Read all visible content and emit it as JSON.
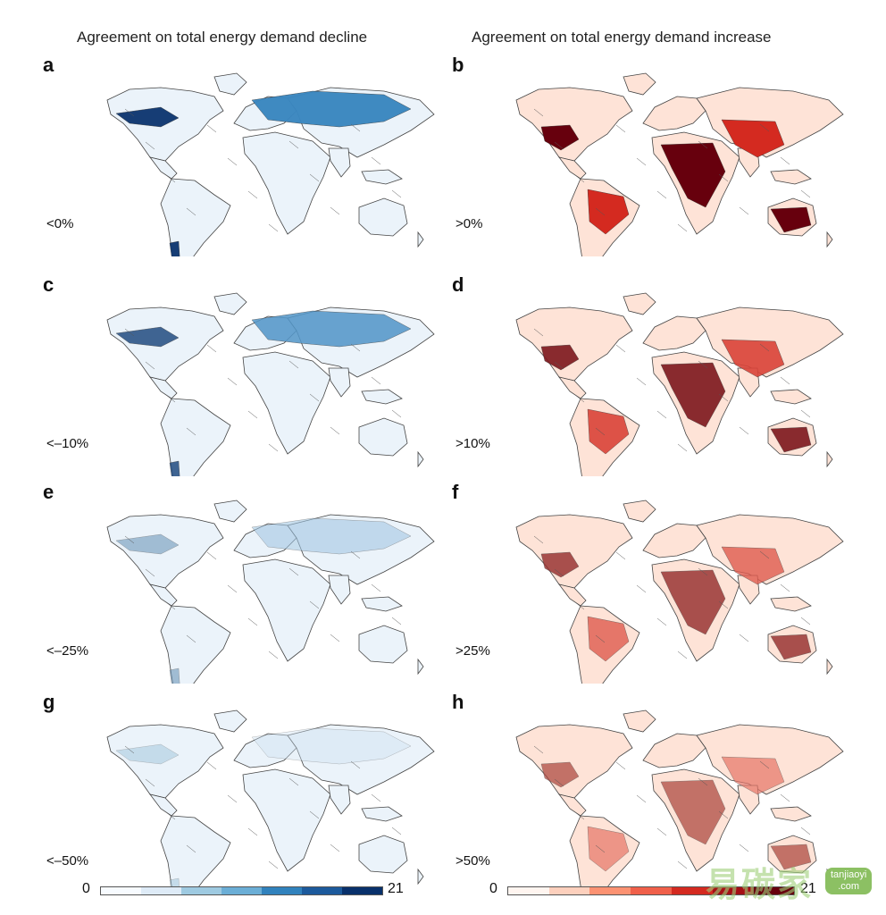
{
  "columns": {
    "left_title": "Agreement on total energy demand decline",
    "right_title": "Agreement on total energy demand increase"
  },
  "panels": [
    {
      "letter": "a",
      "threshold": "<0%",
      "scheme": "blue",
      "intensity": 0.95
    },
    {
      "letter": "b",
      "threshold": ">0%",
      "scheme": "red",
      "intensity": 1.0
    },
    {
      "letter": "c",
      "threshold": "<–10%",
      "scheme": "blue",
      "intensity": 0.8
    },
    {
      "letter": "d",
      "threshold": ">10%",
      "scheme": "red",
      "intensity": 0.85
    },
    {
      "letter": "e",
      "threshold": "<–25%",
      "scheme": "blue",
      "intensity": 0.35
    },
    {
      "letter": "f",
      "threshold": ">25%",
      "scheme": "red",
      "intensity": 0.7
    },
    {
      "letter": "g",
      "threshold": "<–50%",
      "scheme": "blue",
      "intensity": 0.1
    },
    {
      "letter": "h",
      "threshold": ">50%",
      "scheme": "red",
      "intensity": 0.55
    }
  ],
  "colorbars": {
    "blue": {
      "min_label": "0",
      "max_label": "21",
      "colors": [
        "#f7fbff",
        "#deebf7",
        "#9ecae1",
        "#6baed6",
        "#3182bd",
        "#1c5a9c",
        "#08306b"
      ]
    },
    "red": {
      "min_label": "0",
      "max_label": "21",
      "colors": [
        "#fff5f0",
        "#fdd0bd",
        "#fc9272",
        "#f0604a",
        "#d42a20",
        "#a50f15",
        "#67000d"
      ]
    }
  },
  "watermark": {
    "text": "易碳家",
    "pill_line1": "tanjiaoyi",
    "pill_line2": ".com"
  }
}
